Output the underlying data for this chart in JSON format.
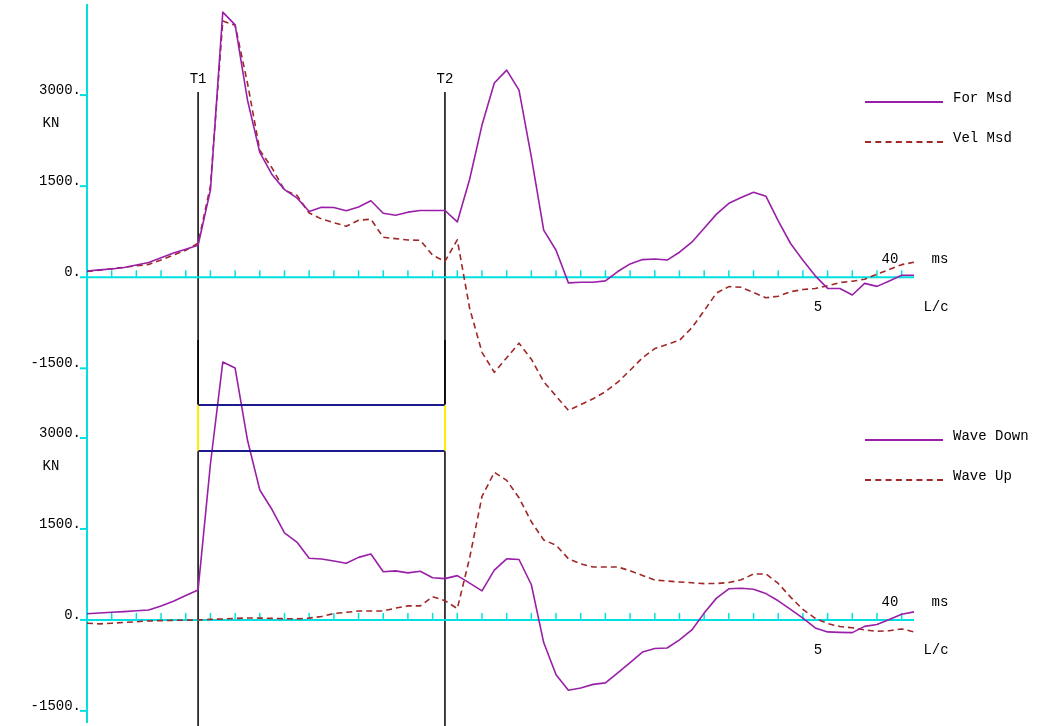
{
  "chart_data": [
    {
      "type": "line",
      "ylabel": "KN",
      "xlabel": "L/c",
      "legend": "right",
      "marker": "none",
      "annotations": [
        "40",
        "ms",
        "5"
      ],
      "categories": [
        null,
        null,
        null,
        null,
        null,
        null,
        null,
        null,
        null,
        "T1",
        null,
        null,
        null,
        null,
        null,
        null,
        null,
        null,
        null,
        null,
        null,
        null,
        null,
        null,
        null,
        null,
        null,
        null,
        null,
        "T2",
        null,
        null,
        null,
        null,
        null,
        null,
        null,
        null,
        null,
        null,
        null,
        null,
        null,
        null,
        null,
        null,
        null,
        null,
        null,
        null,
        null,
        null,
        null,
        null,
        null,
        null,
        null,
        null,
        null,
        null,
        null,
        null,
        null,
        null,
        null,
        null,
        null,
        null
      ],
      "ylim": [
        -2400,
        4500
      ],
      "yticks": [
        {
          "value": -1500,
          "label": "-1500."
        },
        {
          "value": 0,
          "label": "0."
        },
        {
          "value": 1500,
          "label": "1500."
        },
        {
          "value": 3000,
          "label": "3000."
        }
      ],
      "ref_lines": [
        {
          "axis": "x",
          "value": "T1",
          "color": "#000000"
        },
        {
          "axis": "x",
          "value": "T2",
          "color": "#000000"
        },
        {
          "axis": "y",
          "value": 0,
          "color": "#00e0e0"
        }
      ],
      "series": [
        {
          "name": "For Msd",
          "color": "#9a1fa8",
          "line_style": "solid",
          "values": [
            104,
            122,
            137,
            160,
            202,
            243,
            321,
            398,
            461,
            527,
            1435,
            4367,
            4157,
            2920,
            2055,
            1687,
            1443,
            1308,
            1082,
            1154,
            1148,
            1095,
            1158,
            1259,
            1054,
            1022,
            1072,
            1100,
            1100,
            1100,
            911,
            1614,
            2506,
            3200,
            3411,
            3082,
            1977,
            775,
            445,
            -92,
            -82,
            -82,
            -59,
            94,
            220,
            291,
            300,
            283,
            412,
            577,
            808,
            1040,
            1218,
            1313,
            1400,
            1335,
            930,
            556,
            280,
            23,
            -184,
            -184,
            -292,
            -101,
            -150,
            -60,
            33,
            33
          ]
        },
        {
          "name": "Vel Msd",
          "color": "#a02828",
          "line_style": "dashed",
          "values": [
            94,
            117,
            141,
            164,
            188,
            212,
            285,
            365,
            445,
            560,
            1505,
            4221,
            4150,
            3200,
            2093,
            1796,
            1434,
            1351,
            1057,
            960,
            899,
            841,
            939,
            956,
            658,
            636,
            614,
            610,
            363,
            260,
            617,
            -511,
            -1236,
            -1566,
            -1326,
            -1086,
            -1349,
            -1721,
            -1956,
            -2192,
            -2097,
            -2002,
            -1883,
            -1728,
            -1532,
            -1326,
            -1175,
            -1107,
            -1038,
            -832,
            -551,
            -259,
            -154,
            -165,
            -250,
            -338,
            -313,
            -237,
            -202,
            -185,
            -139,
            -87,
            -65,
            -33,
            49,
            129,
            208,
            247
          ]
        }
      ]
    },
    {
      "type": "line",
      "ylabel": "KN",
      "xlabel": "L/c",
      "legend": "right",
      "marker": "none",
      "tick_labels": "y",
      "annotations": [
        "40",
        "ms",
        "5"
      ],
      "categories": [
        null,
        null,
        null,
        null,
        null,
        null,
        null,
        null,
        null,
        "T1",
        null,
        null,
        null,
        null,
        null,
        null,
        null,
        null,
        null,
        null,
        null,
        null,
        null,
        null,
        null,
        null,
        null,
        null,
        null,
        "T2",
        null,
        null,
        null,
        null,
        null,
        null,
        null,
        null,
        null,
        null,
        null,
        null,
        null,
        null,
        null,
        null,
        null,
        null,
        null,
        null,
        null,
        null,
        null,
        null,
        null,
        null,
        null,
        null,
        null,
        null,
        null,
        null,
        null,
        null,
        null,
        null,
        null,
        null
      ],
      "ylim": [
        -1700,
        4500
      ],
      "yticks": [
        {
          "value": -1500,
          "label": "-1500."
        },
        {
          "value": 0,
          "label": "0."
        },
        {
          "value": 1500,
          "label": "1500."
        },
        {
          "value": 3000,
          "label": "3000."
        }
      ],
      "ref_lines": [
        {
          "axis": "x",
          "value": "T1",
          "color": "#000000"
        },
        {
          "axis": "x",
          "value": "T2",
          "color": "#000000"
        },
        {
          "axis": "y",
          "value": 0,
          "color": "#00e0e0"
        }
      ],
      "series": [
        {
          "name": "Wave Down",
          "color": "#9a1fa8",
          "line_style": "solid",
          "values": [
            102,
            114,
            125,
            136,
            150,
            164,
            230,
            308,
            401,
            494,
            2571,
            4252,
            4153,
            2966,
            2142,
            1816,
            1435,
            1284,
            1017,
            1003,
            971,
            934,
            1031,
            1088,
            793,
            808,
            775,
            803,
            696,
            681,
            730,
            607,
            478,
            820,
            1007,
            996,
            580,
            -374,
            -905,
            -1161,
            -1122,
            -1063,
            -1038,
            -873,
            -703,
            -530,
            -472,
            -463,
            -329,
            -165,
            112,
            359,
            513,
            521,
            505,
            434,
            315,
            173,
            29,
            -132,
            -198,
            -205,
            -210,
            -107,
            -76,
            7,
            94,
            132
          ]
        },
        {
          "name": "Wave Up",
          "color": "#a02828",
          "line_style": "dashed",
          "values": [
            -54,
            -65,
            -55,
            -42,
            -30,
            -17,
            -12,
            -8,
            -4,
            0,
            8,
            16,
            24,
            32,
            30,
            25,
            21,
            17,
            30,
            55,
            105,
            125,
            146,
            148,
            148,
            194,
            231,
            231,
            382,
            317,
            187,
            1022,
            2035,
            2433,
            2301,
            2013,
            1618,
            1318,
            1232,
            1009,
            924,
            873,
            873,
            873,
            810,
            733,
            657,
            641,
            625,
            612,
            599,
            600,
            616,
            661,
            757,
            758,
            601,
            376,
            173,
            26,
            -61,
            -109,
            -130,
            -166,
            -189,
            -178,
            -149,
            -198
          ]
        }
      ]
    }
  ]
}
